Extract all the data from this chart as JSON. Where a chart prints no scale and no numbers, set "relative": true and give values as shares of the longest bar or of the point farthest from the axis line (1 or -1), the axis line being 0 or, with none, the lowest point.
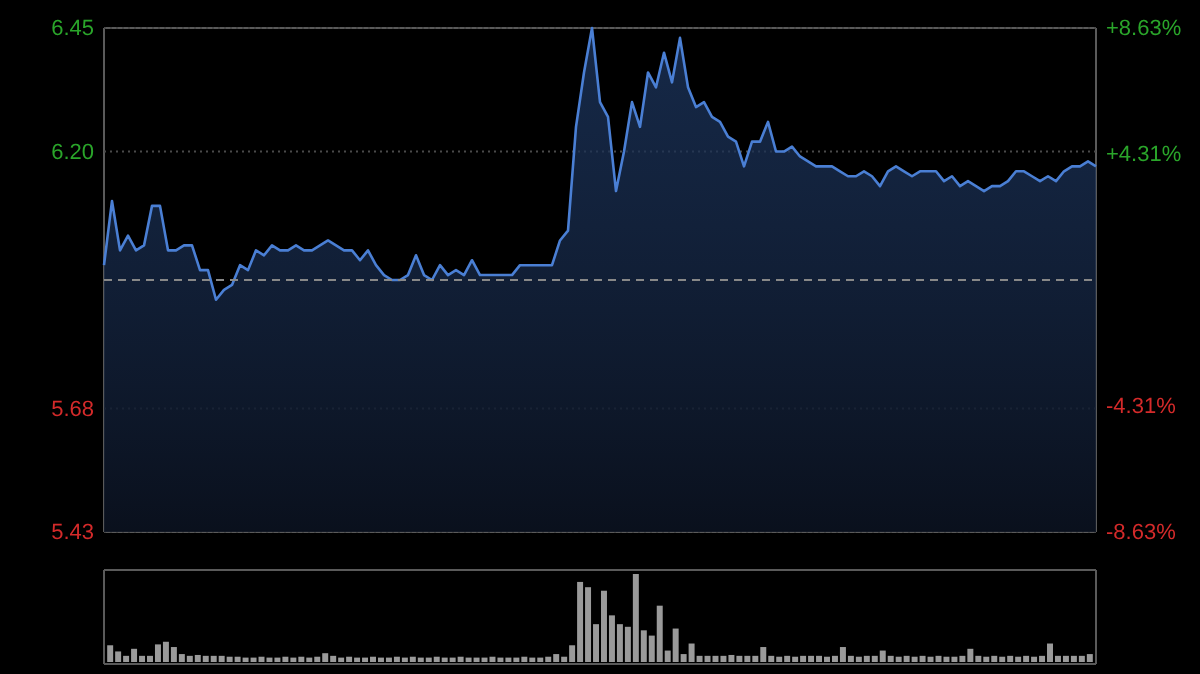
{
  "chart_data": [
    {
      "type": "area",
      "color": "#4a7fd4",
      "ylim": [
        5.43,
        6.45
      ],
      "yticks": [
        5.43,
        5.68,
        {
          "value": 6.2,
          "label": "6.20"
        },
        6.45
      ],
      "y2lim": [
        -8.63,
        8.63
      ],
      "y2ticks": [
        {
          "value": -8.63,
          "label": "-8.63%"
        },
        {
          "value": -4.31,
          "label": "-4.31%"
        },
        {
          "value": 4.31,
          "label": "+4.31%"
        },
        {
          "value": 8.63,
          "label": "+8.63%"
        }
      ],
      "ref_lines": [
        {
          "axis": "y",
          "value": 5.94,
          "color": "#888888",
          "line_style": "dashed"
        }
      ],
      "grid": true,
      "categories": [
        null,
        null,
        null,
        null,
        null,
        null,
        null,
        null,
        null,
        null,
        null,
        null,
        null,
        null,
        null,
        null,
        null,
        null,
        null,
        null,
        null,
        null,
        null,
        null,
        null,
        null,
        null,
        null,
        null,
        null,
        null,
        null,
        null,
        null,
        null,
        null,
        null,
        null,
        null,
        null,
        null,
        null,
        null,
        null,
        null,
        null,
        null,
        null,
        null,
        null,
        null,
        null,
        null,
        null,
        null,
        null,
        null,
        null,
        null,
        null,
        null,
        null,
        null,
        null,
        null,
        null,
        null,
        null,
        null,
        null,
        null,
        null,
        null,
        null,
        null,
        null,
        null,
        null,
        null,
        null,
        null,
        null,
        null,
        null,
        null,
        null,
        null,
        null,
        null,
        null,
        null,
        null,
        null,
        null,
        null,
        null,
        null,
        null,
        null,
        null,
        null,
        null,
        null,
        null,
        null,
        null,
        null,
        null,
        null,
        null,
        null,
        null,
        null,
        null,
        null,
        null,
        null,
        null,
        null,
        null,
        null,
        null,
        null,
        null,
        null
      ],
      "values": [
        5.97,
        6.1,
        6.0,
        6.03,
        6.0,
        6.01,
        6.09,
        6.09,
        6.0,
        6.0,
        6.01,
        6.01,
        5.96,
        5.96,
        5.9,
        5.92,
        5.93,
        5.97,
        5.96,
        6.0,
        5.99,
        6.01,
        6.0,
        6.0,
        6.01,
        6.0,
        6.0,
        6.01,
        6.02,
        6.01,
        6.0,
        6.0,
        5.98,
        6.0,
        5.97,
        5.95,
        5.94,
        5.94,
        5.95,
        5.99,
        5.95,
        5.94,
        5.97,
        5.95,
        5.96,
        5.95,
        5.98,
        5.95,
        5.95,
        5.95,
        5.95,
        5.95,
        5.97,
        5.97,
        5.97,
        5.97,
        5.97,
        6.02,
        6.04,
        6.25,
        6.36,
        6.45,
        6.3,
        6.27,
        6.12,
        6.2,
        6.3,
        6.25,
        6.36,
        6.33,
        6.4,
        6.34,
        6.43,
        6.33,
        6.29,
        6.3,
        6.27,
        6.26,
        6.23,
        6.22,
        6.17,
        6.22,
        6.22,
        6.26,
        6.2,
        6.2,
        6.21,
        6.19,
        6.18,
        6.17,
        6.17,
        6.17,
        6.16,
        6.15,
        6.15,
        6.16,
        6.15,
        6.13,
        6.16,
        6.17,
        6.16,
        6.15,
        6.16,
        6.16,
        6.16,
        6.14,
        6.15,
        6.13,
        6.14,
        6.13,
        6.12,
        6.13,
        6.13,
        6.14,
        6.16,
        6.16,
        6.15,
        6.14,
        6.15,
        6.14,
        6.16,
        6.17,
        6.17,
        6.18,
        6.17
      ]
    },
    {
      "type": "bar",
      "relative": true,
      "color": "#9a9a9a",
      "categories": [
        null,
        null,
        null,
        null,
        null,
        null,
        null,
        null,
        null,
        null,
        null,
        null,
        null,
        null,
        null,
        null,
        null,
        null,
        null,
        null,
        null,
        null,
        null,
        null,
        null,
        null,
        null,
        null,
        null,
        null,
        null,
        null,
        null,
        null,
        null,
        null,
        null,
        null,
        null,
        null,
        null,
        null,
        null,
        null,
        null,
        null,
        null,
        null,
        null,
        null,
        null,
        null,
        null,
        null,
        null,
        null,
        null,
        null,
        null,
        null,
        null,
        null,
        null,
        null,
        null,
        null,
        null,
        null,
        null,
        null,
        null,
        null,
        null,
        null,
        null,
        null,
        null,
        null,
        null,
        null,
        null,
        null,
        null,
        null,
        null,
        null,
        null,
        null,
        null,
        null,
        null,
        null,
        null,
        null,
        null,
        null,
        null,
        null,
        null,
        null,
        null,
        null,
        null,
        null,
        null,
        null,
        null,
        null,
        null,
        null,
        null,
        null,
        null,
        null,
        null,
        null,
        null,
        null,
        null,
        null,
        null,
        null,
        null,
        null
      ],
      "values": [
        0.19,
        0.12,
        0.07,
        0.15,
        0.07,
        0.07,
        0.2,
        0.23,
        0.17,
        0.09,
        0.07,
        0.08,
        0.07,
        0.07,
        0.07,
        0.06,
        0.06,
        0.05,
        0.05,
        0.06,
        0.05,
        0.05,
        0.06,
        0.05,
        0.06,
        0.05,
        0.06,
        0.1,
        0.07,
        0.05,
        0.06,
        0.05,
        0.05,
        0.06,
        0.05,
        0.05,
        0.06,
        0.05,
        0.06,
        0.05,
        0.05,
        0.06,
        0.05,
        0.05,
        0.06,
        0.05,
        0.05,
        0.05,
        0.06,
        0.05,
        0.05,
        0.05,
        0.06,
        0.05,
        0.05,
        0.06,
        0.09,
        0.06,
        0.19,
        0.91,
        0.85,
        0.43,
        0.81,
        0.53,
        0.43,
        0.4,
        1,
        0.36,
        0.3,
        0.64,
        0.13,
        0.38,
        0.09,
        0.21,
        0.07,
        0.07,
        0.07,
        0.07,
        0.08,
        0.07,
        0.07,
        0.07,
        0.17,
        0.07,
        0.06,
        0.07,
        0.06,
        0.07,
        0.07,
        0.07,
        0.06,
        0.07,
        0.17,
        0.07,
        0.06,
        0.07,
        0.07,
        0.13,
        0.07,
        0.06,
        0.07,
        0.06,
        0.07,
        0.06,
        0.07,
        0.06,
        0.06,
        0.07,
        0.15,
        0.07,
        0.06,
        0.07,
        0.06,
        0.07,
        0.06,
        0.07,
        0.06,
        0.07,
        0.21,
        0.07,
        0.07,
        0.07,
        0.07,
        0.09
      ]
    }
  ]
}
